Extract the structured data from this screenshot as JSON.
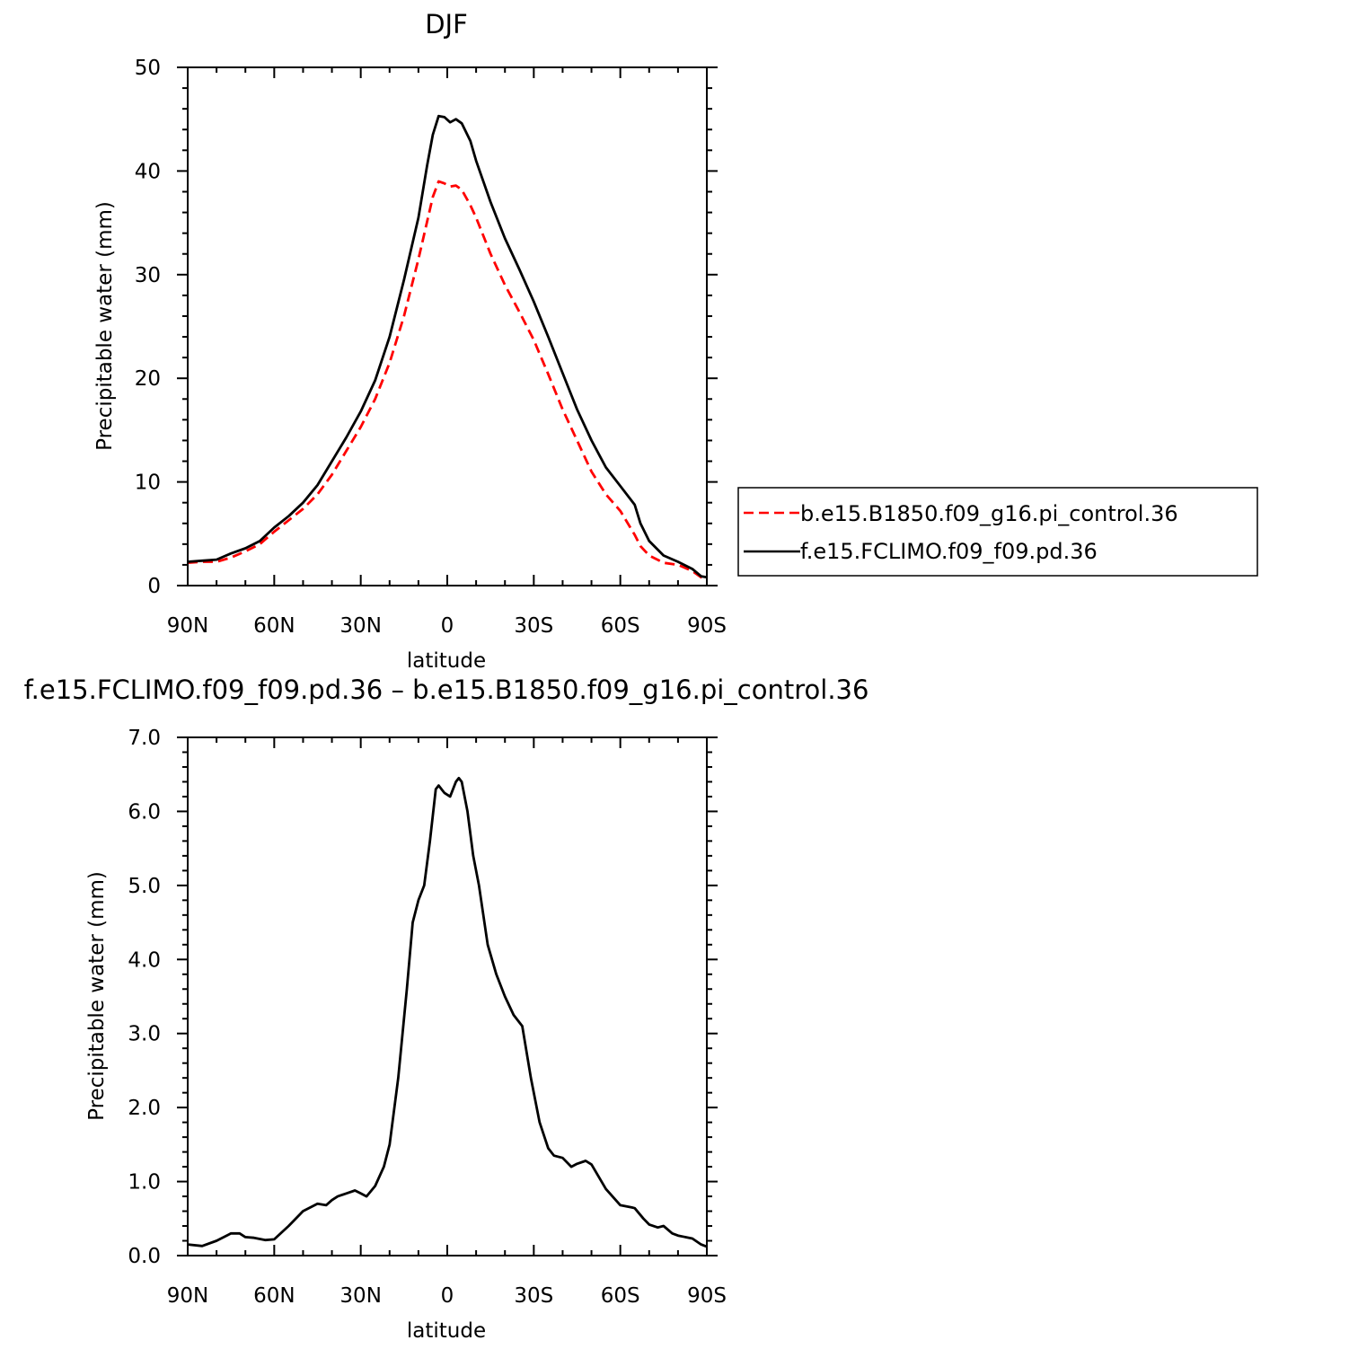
{
  "chart_data": [
    {
      "type": "line",
      "title": "DJF",
      "xlabel": "latitude",
      "ylabel": "Precipitable water (mm)",
      "xlim": [
        -90,
        90
      ],
      "ylim": [
        0,
        50
      ],
      "grid": false,
      "x_ticks": [
        -90,
        -60,
        -30,
        0,
        30,
        60,
        90
      ],
      "x_tick_labels": [
        "90N",
        "60N",
        "30N",
        "0",
        "30S",
        "60S",
        "90S"
      ],
      "y_ticks": [
        0,
        10,
        20,
        30,
        40,
        50
      ],
      "y_tick_labels": [
        "0",
        "10",
        "20",
        "30",
        "40",
        "50"
      ],
      "legend": "right",
      "series": [
        {
          "name": "b.e15.B1850.f09_g16.pi_control.36",
          "color": "#ff0000",
          "style": "dashed",
          "x": [
            -90,
            -85,
            -80,
            -75,
            -70,
            -65,
            -60,
            -55,
            -50,
            -45,
            -40,
            -35,
            -30,
            -25,
            -20,
            -15,
            -10,
            -5,
            -3,
            -1,
            1,
            3,
            5,
            8,
            10,
            15,
            20,
            25,
            30,
            35,
            40,
            45,
            50,
            55,
            60,
            65,
            67,
            70,
            75,
            80,
            85,
            88,
            90
          ],
          "y": [
            2.2,
            2.3,
            2.3,
            2.7,
            3.3,
            4.0,
            5.2,
            6.3,
            7.4,
            8.8,
            10.7,
            13.0,
            15.3,
            18.0,
            21.5,
            26.0,
            31.5,
            37.5,
            39.0,
            38.8,
            38.5,
            38.6,
            38.2,
            36.7,
            35.5,
            32.0,
            29.0,
            26.4,
            23.7,
            20.4,
            17.0,
            14.0,
            11.0,
            8.8,
            7.2,
            4.9,
            3.8,
            2.9,
            2.2,
            2.0,
            1.4,
            0.8,
            0.7
          ]
        },
        {
          "name": "f.e15.FCLIMO.f09_f09.pd.36",
          "color": "#000000",
          "style": "solid",
          "x": [
            -90,
            -85,
            -80,
            -75,
            -70,
            -65,
            -60,
            -55,
            -50,
            -45,
            -40,
            -35,
            -30,
            -25,
            -20,
            -15,
            -10,
            -7,
            -5,
            -3,
            -1,
            1,
            3,
            5,
            8,
            10,
            15,
            20,
            25,
            30,
            35,
            40,
            45,
            50,
            55,
            60,
            65,
            67,
            70,
            75,
            80,
            85,
            88,
            90
          ],
          "y": [
            2.3,
            2.4,
            2.5,
            3.1,
            3.6,
            4.3,
            5.6,
            6.7,
            8.0,
            9.7,
            12.0,
            14.3,
            16.8,
            19.8,
            24.0,
            29.5,
            35.5,
            40.5,
            43.5,
            45.3,
            45.2,
            44.7,
            45.0,
            44.6,
            42.9,
            41.0,
            37.0,
            33.5,
            30.5,
            27.4,
            24.0,
            20.5,
            17.0,
            14.0,
            11.4,
            9.6,
            7.8,
            6.0,
            4.3,
            2.9,
            2.3,
            1.6,
            0.9,
            0.8
          ]
        }
      ]
    },
    {
      "type": "line",
      "title": "f.e15.FCLIMO.f09_f09.pd.36 – b.e15.B1850.f09_g16.pi_control.36",
      "xlabel": "latitude",
      "ylabel": "Precipitable water (mm)",
      "xlim": [
        -90,
        90
      ],
      "ylim": [
        0,
        7
      ],
      "grid": false,
      "x_ticks": [
        -90,
        -60,
        -30,
        0,
        30,
        60,
        90
      ],
      "x_tick_labels": [
        "90N",
        "60N",
        "30N",
        "0",
        "30S",
        "60S",
        "90S"
      ],
      "y_ticks": [
        0,
        1,
        2,
        3,
        4,
        5,
        6,
        7
      ],
      "y_tick_labels": [
        "0.0",
        "1.0",
        "2.0",
        "3.0",
        "4.0",
        "5.0",
        "6.0",
        "7.0"
      ],
      "series": [
        {
          "color": "#000000",
          "style": "solid",
          "x": [
            -90,
            -85,
            -80,
            -75,
            -72,
            -70,
            -67,
            -63,
            -60,
            -55,
            -50,
            -45,
            -42,
            -40,
            -38,
            -35,
            -32,
            -30,
            -28,
            -25,
            -22,
            -20,
            -17,
            -14,
            -12,
            -10,
            -8,
            -6,
            -4,
            -3,
            -1,
            1,
            3,
            4,
            5,
            7,
            9,
            11,
            14,
            17,
            20,
            23,
            26,
            29,
            32,
            35,
            37,
            40,
            43,
            45,
            48,
            50,
            55,
            60,
            64,
            65,
            68,
            70,
            73,
            75,
            78,
            80,
            85,
            88,
            90
          ],
          "y": [
            0.15,
            0.13,
            0.2,
            0.3,
            0.3,
            0.25,
            0.24,
            0.21,
            0.22,
            0.4,
            0.6,
            0.7,
            0.68,
            0.75,
            0.8,
            0.84,
            0.88,
            0.84,
            0.8,
            0.94,
            1.2,
            1.5,
            2.4,
            3.6,
            4.5,
            4.8,
            5.0,
            5.6,
            6.3,
            6.35,
            6.25,
            6.2,
            6.4,
            6.45,
            6.4,
            6.0,
            5.4,
            5.0,
            4.2,
            3.8,
            3.5,
            3.25,
            3.1,
            2.4,
            1.8,
            1.45,
            1.35,
            1.32,
            1.2,
            1.24,
            1.28,
            1.23,
            0.9,
            0.68,
            0.65,
            0.64,
            0.5,
            0.42,
            0.38,
            0.4,
            0.3,
            0.27,
            0.23,
            0.15,
            0.12
          ]
        }
      ]
    }
  ]
}
